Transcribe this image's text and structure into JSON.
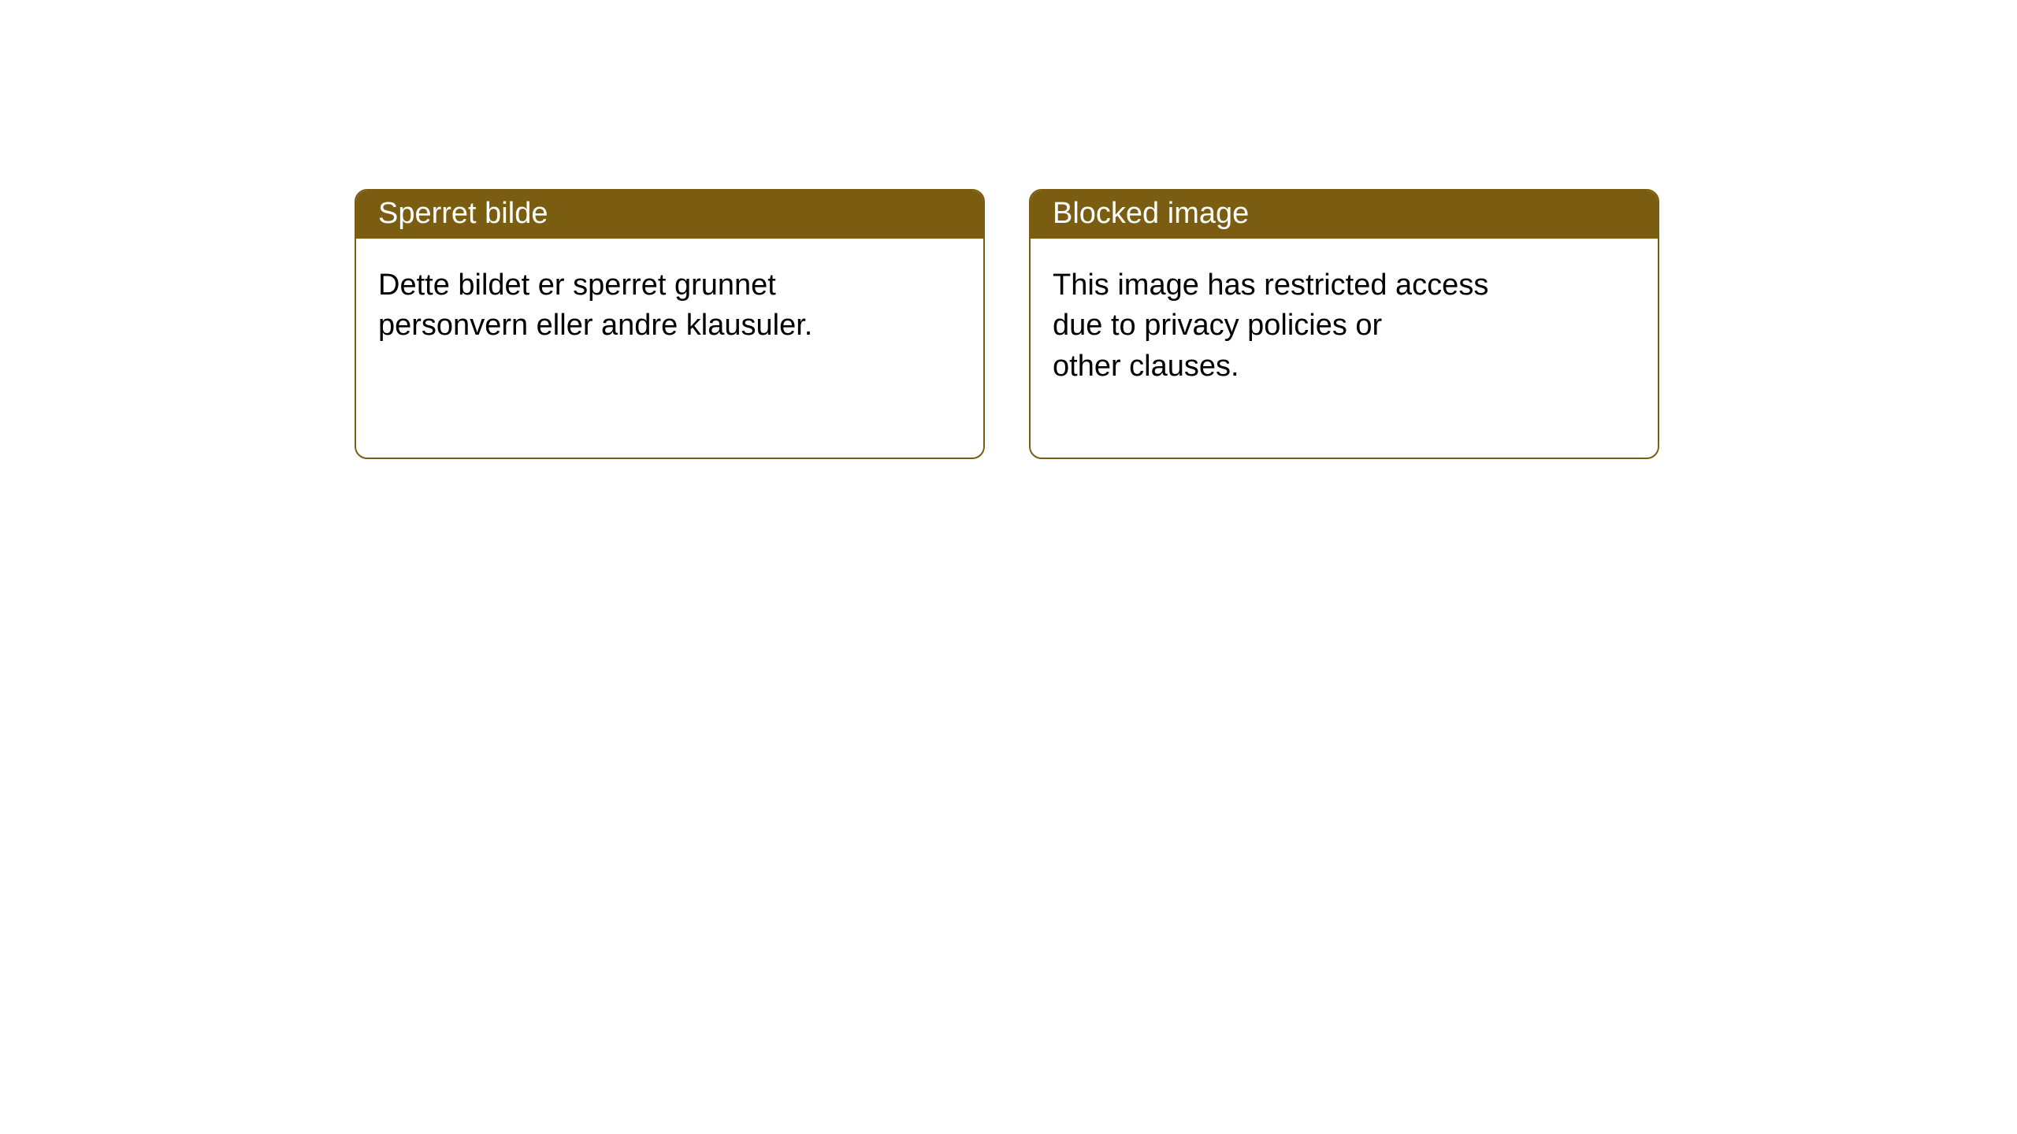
{
  "notices": [
    {
      "title": "Sperret bilde",
      "body": "Dette bildet er sperret grunnet\npersonvern eller andre klausuler."
    },
    {
      "title": "Blocked image",
      "body": "This image has restricted access\ndue to privacy policies or\nother clauses."
    }
  ],
  "style": {
    "header_bg": "#7a5d11",
    "header_color": "#ffffff",
    "border_color": "#7a5d11",
    "body_color": "#000000",
    "background_color": "#ffffff",
    "border_radius": 16,
    "title_fontsize": 38,
    "body_fontsize": 38
  }
}
